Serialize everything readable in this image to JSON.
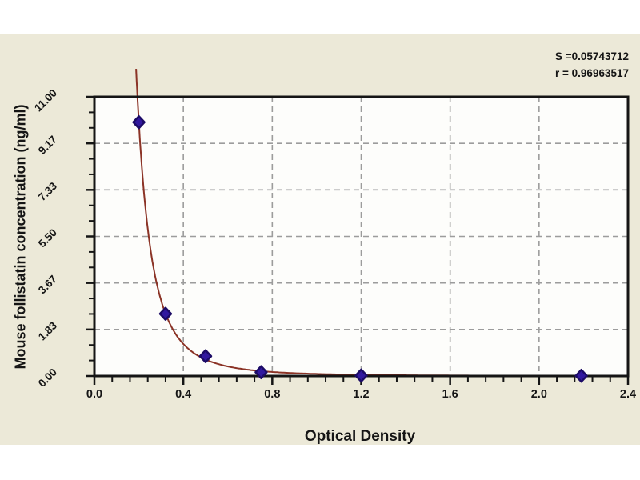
{
  "window": {
    "background": "#ffffff",
    "panel_background": "#ece9d8"
  },
  "stats": {
    "s_label": "S =0.05743712",
    "r_label": "r = 0.96963517"
  },
  "chart_data": {
    "type": "scatter",
    "title": "",
    "xlabel": "Optical Density",
    "ylabel": "Mouse follistatin concentration (ng/ml)",
    "xlim": [
      0.0,
      2.4
    ],
    "ylim": [
      0.0,
      11.0
    ],
    "x_ticks": [
      0.0,
      0.4,
      0.8,
      1.2,
      1.6,
      2.0,
      2.4
    ],
    "x_tick_labels": [
      "0.0",
      "0.4",
      "0.8",
      "1.2",
      "1.6",
      "2.0",
      "2.4"
    ],
    "x_minor_step": 0.08,
    "y_ticks": [
      0.0,
      1.8333,
      3.6667,
      5.5,
      7.3333,
      9.1667,
      11.0
    ],
    "y_tick_labels": [
      "0.00",
      "1.83",
      "3.67",
      "5.50",
      "7.33",
      "9.17",
      "11.00"
    ],
    "y_minor_step": 0.6111,
    "grid": "dashed",
    "legend_position": "none",
    "points": [
      {
        "x": 0.2,
        "y": 10.0
      },
      {
        "x": 0.32,
        "y": 2.45
      },
      {
        "x": 0.5,
        "y": 0.78
      },
      {
        "x": 0.75,
        "y": 0.15
      },
      {
        "x": 1.2,
        "y": 0.02
      },
      {
        "x": 2.19,
        "y": 0.01
      }
    ],
    "fit_curve": {
      "model": "power",
      "equation": "y = a * x^(-b)",
      "a": 0.082,
      "b": 2.984,
      "x_end": 2.4,
      "y_peak": 12.1
    },
    "colors": {
      "point_fill": "#31189f",
      "point_edge": "#1c0b66",
      "curve": "#8b3326",
      "grid": "#9c9c9c",
      "frame": "#151515",
      "plot_bg": "#fdfdfb",
      "text": "#151515"
    }
  }
}
